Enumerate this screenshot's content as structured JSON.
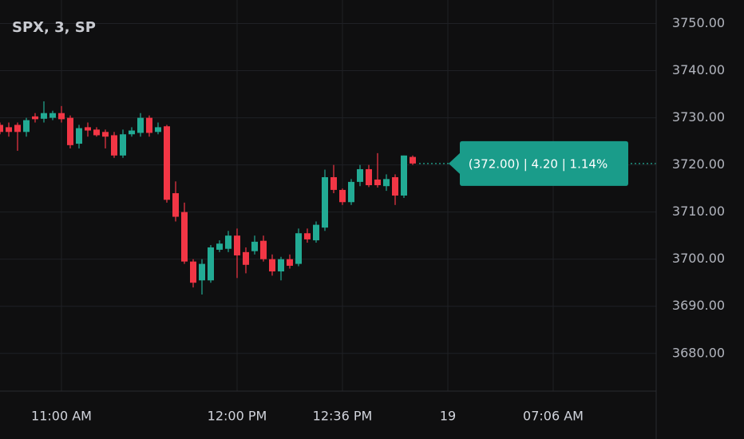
{
  "chart_data": {
    "type": "candlestick",
    "title": "SPX, 3, SP",
    "price_label": "(372.00) | 4.20 | 1.14%",
    "categories": [
      null,
      null,
      null,
      null,
      null,
      null,
      null,
      "11:00 AM",
      null,
      null,
      null,
      null,
      null,
      null,
      null,
      null,
      null,
      null,
      null,
      null,
      null,
      null,
      null,
      null,
      null,
      null,
      null,
      "12:00 PM",
      null,
      null,
      null,
      null,
      null,
      null,
      null,
      null,
      null,
      null,
      null,
      "12:36 PM",
      null,
      null,
      null,
      null,
      null,
      null,
      null,
      null,
      null,
      null,
      null,
      "19",
      null,
      null,
      null,
      null,
      null,
      null,
      null,
      null,
      null,
      null,
      null,
      "07:06 AM"
    ],
    "open": [
      3728.5,
      3728,
      3728.5,
      3727,
      3730.3,
      3729.8,
      3730,
      3731,
      3730,
      3724.5,
      3728,
      3727.5,
      3727,
      3726.3,
      3722,
      3726.5,
      3726.8,
      3730,
      3727,
      3728.2,
      3714,
      3710,
      3699.5,
      3695.5,
      3695.5,
      3702,
      3702.2,
      3705,
      3701.5,
      3701.7,
      3703.9,
      3700,
      3697.4,
      3700,
      3699,
      3705.5,
      3704,
      3706.7,
      3717.4,
      3714.7,
      3712.1,
      3716.4,
      3719.1,
      3716.9,
      3715.5,
      3717.4,
      3713.5,
      3721.7,
      null,
      null,
      null,
      null,
      null,
      null,
      null,
      null,
      null,
      null,
      null,
      null,
      null,
      null,
      null,
      null
    ],
    "high": [
      3729,
      3729,
      3729,
      3730,
      3731,
      3733.5,
      3731.5,
      3732.5,
      3730.5,
      3728.5,
      3729,
      3728,
      3727.5,
      3727,
      3727.5,
      3728,
      3731,
      3730.5,
      3729,
      3728.5,
      3716.5,
      3712,
      3700,
      3700,
      3703,
      3704,
      3706,
      3706.5,
      3702.5,
      3705,
      3705,
      3701,
      3700.5,
      3701,
      3706.5,
      3706.5,
      3708,
      3719,
      3720,
      3715,
      3717,
      3720,
      3720,
      3722.5,
      3718,
      3718,
      3722,
      3722,
      null,
      null,
      null,
      null,
      null,
      null,
      null,
      null,
      null,
      null,
      null,
      null,
      null,
      null,
      null,
      null
    ],
    "low": [
      3726.5,
      3726,
      3723,
      3726,
      3729,
      3729,
      3729.5,
      3729,
      3723.5,
      3723.5,
      3726,
      3726,
      3723.5,
      3721.5,
      3721.5,
      3726,
      3726,
      3726,
      3726.5,
      3712,
      3708,
      3699,
      3694,
      3692.5,
      3695,
      3701.5,
      3701.5,
      3696,
      3697,
      3701,
      3699.5,
      3696.5,
      3695.5,
      3698,
      3698.5,
      3703.5,
      3703.5,
      3706,
      3714,
      3711.5,
      3711.5,
      3715.5,
      3715.3,
      3715.2,
      3714.5,
      3711.5,
      3713,
      3720,
      null,
      null,
      null,
      null,
      null,
      null,
      null,
      null,
      null,
      null,
      null,
      null,
      null,
      null,
      null,
      null
    ],
    "close": [
      3727,
      3727,
      3727,
      3729.5,
      3729.7,
      3731,
      3731,
      3729.7,
      3724.2,
      3727.8,
      3727.3,
      3726.3,
      3726,
      3722,
      3726.5,
      3727.3,
      3730,
      3726.8,
      3728,
      3712.6,
      3709,
      3699.5,
      3695,
      3699,
      3702.5,
      3703.3,
      3705,
      3700.8,
      3698.8,
      3703.7,
      3700,
      3697.4,
      3700,
      3698.6,
      3705.5,
      3704.2,
      3707.3,
      3717.4,
      3714.7,
      3712.1,
      3716.4,
      3719.1,
      3715.7,
      3715.7,
      3717,
      3713.5,
      3722,
      3720.3,
      null,
      null,
      null,
      null,
      null,
      null,
      null,
      null,
      null,
      null,
      null,
      null,
      null,
      null,
      null,
      null
    ],
    "up_color": "#22ab94",
    "down_color": "#f23645",
    "ylim": [
      3672,
      3755
    ],
    "yticks": [
      {
        "value": 3680,
        "label": "3680.00"
      },
      {
        "value": 3690,
        "label": "3690.00"
      },
      {
        "value": 3700,
        "label": "3700.00"
      },
      {
        "value": 3710,
        "label": "3710.00"
      },
      {
        "value": 3720,
        "label": "3720.00"
      },
      {
        "value": 3730,
        "label": "3730.00"
      },
      {
        "value": 3740,
        "label": "3740.00"
      },
      {
        "value": 3750,
        "label": "3750.00"
      }
    ],
    "grid": true
  }
}
